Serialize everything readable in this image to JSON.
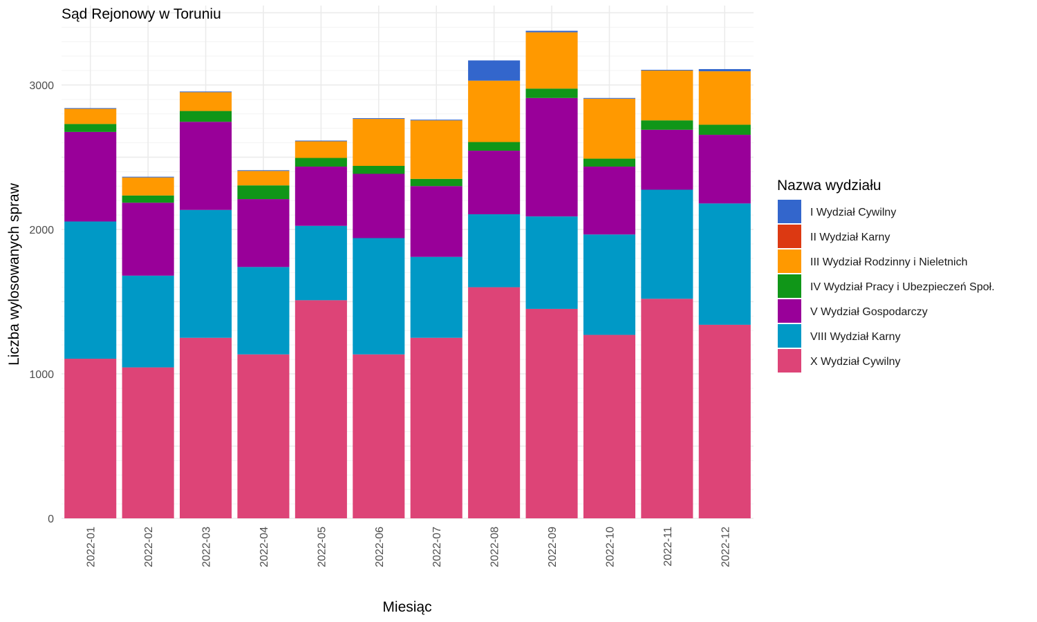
{
  "chart_data": {
    "type": "bar",
    "stacked": true,
    "title": "Sąd Rejonowy w Toruniu",
    "xlabel": "Miesiąc",
    "ylabel": "Liczba wylosowanych spraw",
    "ylim": [
      0,
      3550
    ],
    "yticks": [
      0,
      1000,
      2000,
      3000
    ],
    "grid": true,
    "legend_title": "Nazwa wydziału",
    "legend_position": "right",
    "categories": [
      "2022-01",
      "2022-02",
      "2022-03",
      "2022-04",
      "2022-05",
      "2022-06",
      "2022-07",
      "2022-08",
      "2022-09",
      "2022-10",
      "2022-11",
      "2022-12"
    ],
    "series": [
      {
        "name": "I Wydział Cywilny",
        "color": "#3366CC",
        "values": [
          5,
          5,
          5,
          5,
          5,
          5,
          5,
          140,
          10,
          5,
          5,
          15
        ]
      },
      {
        "name": "II Wydział Karny",
        "color": "#DC3912",
        "values": [
          0,
          0,
          0,
          0,
          0,
          0,
          0,
          0,
          0,
          0,
          0,
          0
        ]
      },
      {
        "name": "III Wydział Rodzinny i Nieletnich",
        "color": "#FF9900",
        "values": [
          105,
          125,
          130,
          100,
          115,
          325,
          405,
          425,
          390,
          415,
          345,
          370
        ]
      },
      {
        "name": "IV Wydział Pracy i Ubezpieczeń Społ.",
        "color": "#109618",
        "values": [
          55,
          50,
          75,
          95,
          60,
          55,
          50,
          60,
          65,
          55,
          65,
          70
        ]
      },
      {
        "name": "V Wydział Gospodarczy",
        "color": "#990099",
        "values": [
          620,
          505,
          610,
          470,
          410,
          445,
          490,
          440,
          820,
          470,
          415,
          475
        ]
      },
      {
        "name": "VIII Wydział Karny",
        "color": "#0099C6",
        "values": [
          950,
          635,
          885,
          605,
          515,
          805,
          560,
          505,
          640,
          695,
          755,
          840
        ]
      },
      {
        "name": "X Wydział Cywilny",
        "color": "#DD4477",
        "values": [
          1105,
          1045,
          1250,
          1135,
          1510,
          1135,
          1250,
          1600,
          1450,
          1270,
          1520,
          1340
        ]
      }
    ]
  }
}
